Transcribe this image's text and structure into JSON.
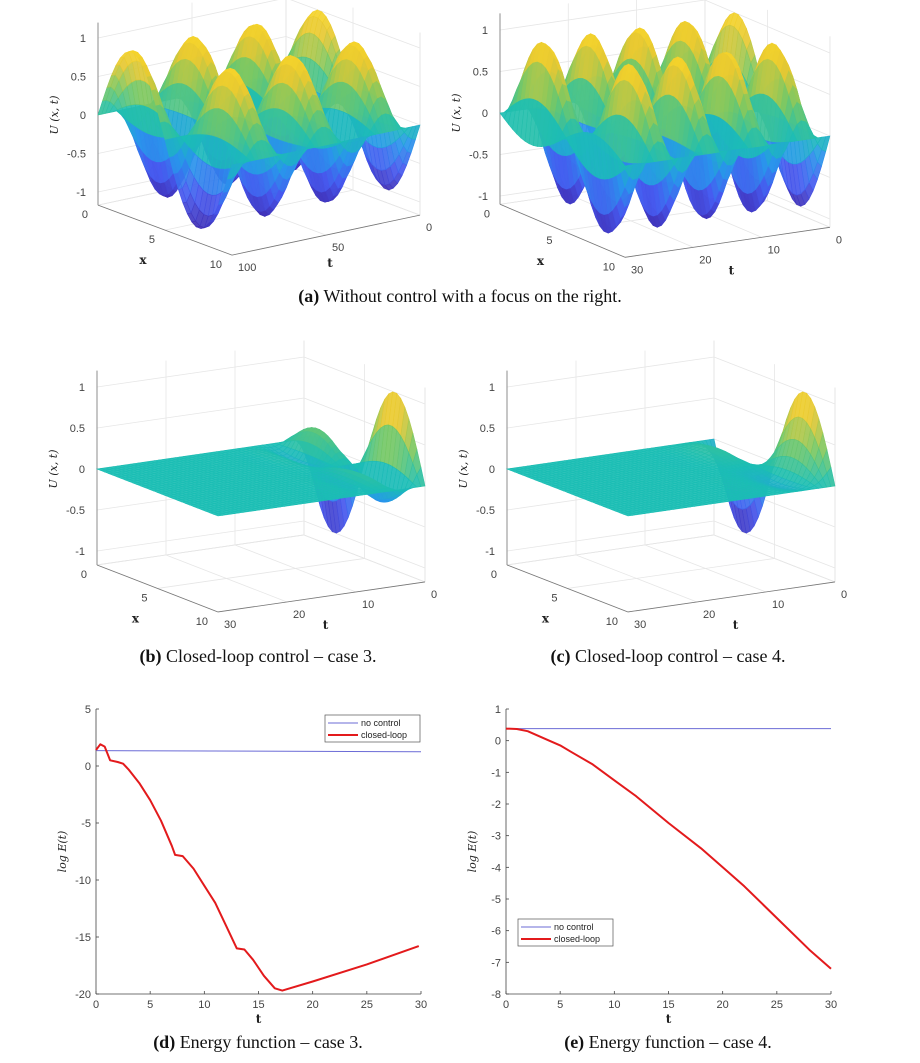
{
  "captions": {
    "a": {
      "label": "(a)",
      "text": " Without control with a focus on the right."
    },
    "b": {
      "label": "(b)",
      "text": " Closed-loop control – case 3."
    },
    "c": {
      "label": "(c)",
      "text": " Closed-loop control – case 4."
    },
    "d": {
      "label": "(d)",
      "text": " Energy function – case 3."
    },
    "e": {
      "label": "(e)",
      "text": " Energy function – case 4."
    }
  },
  "chart_data": [
    {
      "type": "surface",
      "panel": "a-left",
      "xlabel": "x",
      "tlabel": "t",
      "zlabel": "U (x, t)",
      "x_ticks": [
        0,
        5,
        10
      ],
      "t_ticks": [
        0,
        50,
        100
      ],
      "z_ticks": [
        -1,
        -0.5,
        0,
        0.5,
        1
      ],
      "xlim": [
        0,
        10
      ],
      "tlim": [
        0,
        100
      ],
      "zlim": [
        -1.2,
        1.2
      ],
      "colormap": "parula"
    },
    {
      "type": "surface",
      "panel": "a-right",
      "xlabel": "x",
      "tlabel": "t",
      "zlabel": "U (x, t)",
      "x_ticks": [
        0,
        5,
        10
      ],
      "t_ticks": [
        0,
        10,
        20,
        30
      ],
      "z_ticks": [
        -1,
        -0.5,
        0,
        0.5,
        1
      ],
      "xlim": [
        0,
        10
      ],
      "tlim": [
        0,
        30
      ],
      "zlim": [
        -1.2,
        1.2
      ],
      "colormap": "parula"
    },
    {
      "type": "surface",
      "panel": "b",
      "xlabel": "x",
      "tlabel": "t",
      "zlabel": "U (x, t)",
      "x_ticks": [
        0,
        5,
        10
      ],
      "t_ticks": [
        0,
        10,
        20,
        30
      ],
      "z_ticks": [
        -1,
        -0.5,
        0,
        0.5,
        1
      ],
      "xlim": [
        0,
        10
      ],
      "tlim": [
        0,
        30
      ],
      "zlim": [
        -1.2,
        1.2
      ],
      "colormap": "parula"
    },
    {
      "type": "surface",
      "panel": "c",
      "xlabel": "x",
      "tlabel": "t",
      "zlabel": "U (x, t)",
      "x_ticks": [
        0,
        5,
        10
      ],
      "t_ticks": [
        0,
        10,
        20,
        30
      ],
      "z_ticks": [
        -1,
        -0.5,
        0,
        0.5,
        1
      ],
      "xlim": [
        0,
        10
      ],
      "tlim": [
        0,
        30
      ],
      "zlim": [
        -1.2,
        1.2
      ],
      "colormap": "parula"
    },
    {
      "type": "line",
      "panel": "d",
      "xlabel": "t",
      "ylabel": "log E(t)",
      "xlim": [
        0,
        30
      ],
      "ylim": [
        -20,
        5
      ],
      "x_ticks": [
        0,
        5,
        10,
        15,
        20,
        25,
        30
      ],
      "y_ticks": [
        -20,
        -15,
        -10,
        -5,
        0,
        5
      ],
      "legend": "top-right",
      "series": [
        {
          "name": "no control",
          "color": "#6b6bd6",
          "x": [
            0,
            30
          ],
          "y": [
            1.35,
            1.25
          ]
        },
        {
          "name": "closed-loop",
          "color": "#e31a1c",
          "x": [
            0,
            0.4,
            0.8,
            1.3,
            2,
            2.5,
            3,
            4,
            5,
            6,
            7,
            7.3,
            8,
            9,
            10,
            11,
            12,
            13,
            13.7,
            14.5,
            15.5,
            16.5,
            17.2,
            20,
            25,
            29.8
          ],
          "y": [
            1.4,
            1.9,
            1.7,
            0.5,
            0.35,
            0.2,
            -0.3,
            -1.5,
            -3,
            -4.8,
            -7,
            -7.8,
            -7.9,
            -9,
            -10.5,
            -12,
            -14,
            -16,
            -16.1,
            -17,
            -18.4,
            -19.5,
            -19.7,
            -18.9,
            -17.4,
            -15.8
          ]
        }
      ]
    },
    {
      "type": "line",
      "panel": "e",
      "xlabel": "t",
      "ylabel": "log E(t)",
      "xlim": [
        0,
        30
      ],
      "ylim": [
        -8,
        1
      ],
      "x_ticks": [
        0,
        5,
        10,
        15,
        20,
        25,
        30
      ],
      "y_ticks": [
        -8,
        -7,
        -6,
        -5,
        -4,
        -3,
        -2,
        -1,
        0,
        1
      ],
      "legend": "bottom-left",
      "series": [
        {
          "name": "no control",
          "color": "#6b6bd6",
          "x": [
            0,
            30
          ],
          "y": [
            0.38,
            0.38
          ]
        },
        {
          "name": "closed-loop",
          "color": "#e31a1c",
          "x": [
            0,
            1,
            2,
            3,
            4,
            5,
            6,
            8,
            10,
            12,
            15,
            18,
            20,
            22,
            25,
            28,
            30
          ],
          "y": [
            0.38,
            0.37,
            0.3,
            0.15,
            0.0,
            -0.15,
            -0.35,
            -0.75,
            -1.25,
            -1.75,
            -2.6,
            -3.4,
            -4.0,
            -4.6,
            -5.6,
            -6.6,
            -7.2
          ]
        }
      ]
    }
  ]
}
